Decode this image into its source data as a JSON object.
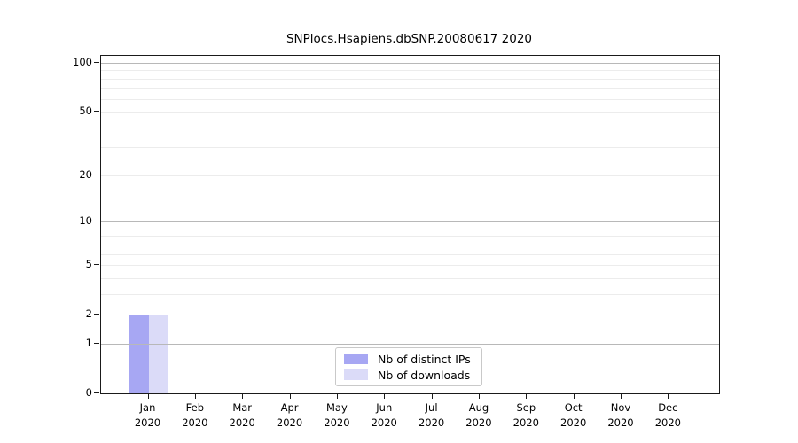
{
  "chart_data": {
    "type": "bar",
    "title": "SNPlocs.Hsapiens.dbSNP.20080617 2020",
    "x_year": "2020",
    "categories": [
      "Jan",
      "Feb",
      "Mar",
      "Apr",
      "May",
      "Jun",
      "Jul",
      "Aug",
      "Sep",
      "Oct",
      "Nov",
      "Dec"
    ],
    "series": [
      {
        "name": "Nb of distinct IPs",
        "color": "#a7a7f3",
        "values": [
          2,
          0,
          0,
          0,
          0,
          0,
          0,
          0,
          0,
          0,
          0,
          0
        ]
      },
      {
        "name": "Nb of downloads",
        "color": "#dbdbf8",
        "values": [
          2,
          0,
          0,
          0,
          0,
          0,
          0,
          0,
          0,
          0,
          0,
          0
        ]
      }
    ],
    "y_scale": "log1p",
    "ylim": [
      0,
      100
    ],
    "y_ticks": [
      0,
      1,
      2,
      5,
      10,
      20,
      50,
      100
    ],
    "y_major_gridlines": [
      1,
      10,
      100
    ],
    "y_minor_gridlines": [
      2,
      3,
      4,
      5,
      6,
      7,
      8,
      9,
      20,
      30,
      40,
      50,
      60,
      70,
      80,
      90
    ],
    "grid": true,
    "legend": {
      "position": "bottom-center"
    },
    "style": {
      "bar_distinct_ips": "#a7a7f3",
      "bar_downloads": "#dbdbf8",
      "grid_major": "#b8b8b8",
      "grid_minor": "#ececec",
      "axis": "#1a1a1a",
      "text": "#000000",
      "legend_border": "#c9c9c9",
      "background": "#ffffff"
    }
  }
}
